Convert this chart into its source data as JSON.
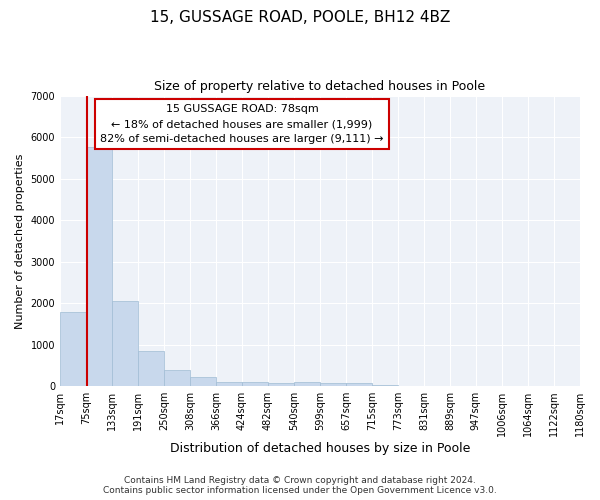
{
  "title": "15, GUSSAGE ROAD, POOLE, BH12 4BZ",
  "subtitle": "Size of property relative to detached houses in Poole",
  "xlabel": "Distribution of detached houses by size in Poole",
  "ylabel": "Number of detached properties",
  "bar_color": "#c8d8ec",
  "bar_edge_color": "#a0bcd4",
  "background_color": "#eef2f8",
  "grid_color": "#ffffff",
  "property_line_x": 78,
  "property_line_color": "#cc0000",
  "annotation_text": "15 GUSSAGE ROAD: 78sqm\n← 18% of detached houses are smaller (1,999)\n82% of semi-detached houses are larger (9,111) →",
  "annotation_box_color": "#ffffff",
  "annotation_box_edge": "#cc0000",
  "footer_line1": "Contains HM Land Registry data © Crown copyright and database right 2024.",
  "footer_line2": "Contains public sector information licensed under the Open Government Licence v3.0.",
  "bin_edges": [
    17,
    75,
    133,
    191,
    250,
    308,
    366,
    424,
    482,
    540,
    599,
    657,
    715,
    773,
    831,
    889,
    947,
    1006,
    1064,
    1122,
    1180
  ],
  "bar_heights": [
    1780,
    5760,
    2060,
    840,
    380,
    220,
    110,
    110,
    70,
    90,
    70,
    70,
    20,
    10,
    10,
    10,
    5,
    5,
    5,
    5
  ],
  "ylim": [
    0,
    7000
  ],
  "yticks": [
    0,
    1000,
    2000,
    3000,
    4000,
    5000,
    6000,
    7000
  ],
  "title_fontsize": 11,
  "subtitle_fontsize": 9,
  "ylabel_fontsize": 8,
  "xlabel_fontsize": 9,
  "tick_fontsize": 7,
  "annotation_fontsize": 8,
  "footer_fontsize": 6.5
}
